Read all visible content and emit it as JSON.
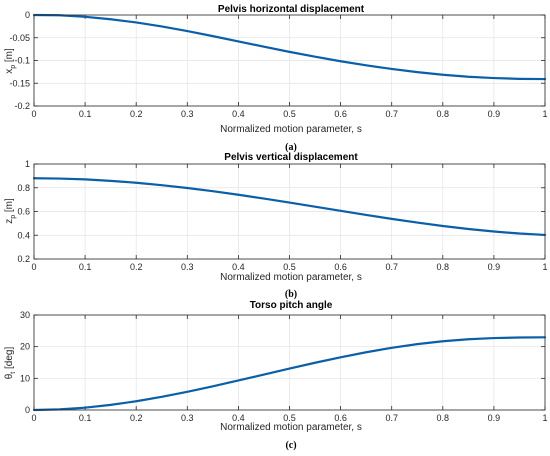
{
  "style": {
    "line_color": "#0b5fa8"
  },
  "panels": [
    {
      "caption": "(a)",
      "chart_data": {
        "type": "line",
        "title": "Pelvis horizontal displacement",
        "xlabel": "Normalized motion parameter, s",
        "ylabel": "x_p [m]",
        "ylabel_main": "x",
        "ylabel_sub": "p",
        "ylabel_unit": " [m]",
        "xlim": [
          0,
          1
        ],
        "ylim": [
          -0.2,
          0
        ],
        "grid": true,
        "xticks": [
          "0",
          "0.1",
          "0.2",
          "0.3",
          "0.4",
          "0.5",
          "0.6",
          "0.7",
          "0.8",
          "0.9",
          "1"
        ],
        "yticks": [
          "-0.2",
          "-0.15",
          "-0.1",
          "-0.05",
          "0"
        ],
        "series": [
          {
            "x": [
              0,
              0.05,
              0.1,
              0.15,
              0.2,
              0.25,
              0.3,
              0.35,
              0.4,
              0.45,
              0.5,
              0.55,
              0.6,
              0.65,
              0.7,
              0.75,
              0.8,
              0.85,
              0.9,
              0.95,
              1.0
            ],
            "values": [
              0,
              -0.0005,
              -0.004,
              -0.0093,
              -0.0164,
              -0.0252,
              -0.0353,
              -0.0464,
              -0.058,
              -0.0697,
              -0.081,
              -0.0917,
              -0.1016,
              -0.1106,
              -0.1186,
              -0.1255,
              -0.1313,
              -0.1357,
              -0.1386,
              -0.1403,
              -0.1408
            ]
          }
        ]
      }
    },
    {
      "caption": "(b)",
      "chart_data": {
        "type": "line",
        "title": "Pelvis vertical displacement",
        "xlabel": "Normalized motion parameter, s",
        "ylabel": "z_p [m]",
        "ylabel_main": "z",
        "ylabel_sub": "p",
        "ylabel_unit": " [m]",
        "xlim": [
          0,
          1
        ],
        "ylim": [
          0.2,
          1
        ],
        "grid": true,
        "xticks": [
          "0",
          "0.1",
          "0.2",
          "0.3",
          "0.4",
          "0.5",
          "0.6",
          "0.7",
          "0.8",
          "0.9",
          "1"
        ],
        "yticks": [
          "0.2",
          "0.4",
          "0.6",
          "0.8",
          "1"
        ],
        "series": [
          {
            "x": [
              0,
              0.05,
              0.1,
              0.15,
              0.2,
              0.25,
              0.3,
              0.35,
              0.4,
              0.45,
              0.5,
              0.55,
              0.6,
              0.65,
              0.7,
              0.75,
              0.8,
              0.85,
              0.9,
              0.95,
              1.0
            ],
            "values": [
              0.88,
              0.8775,
              0.8702,
              0.8582,
              0.842,
              0.8218,
              0.7979,
              0.7709,
              0.741,
              0.7088,
              0.675,
              0.6403,
              0.6055,
              0.5712,
              0.538,
              0.5067,
              0.478,
              0.4527,
              0.4313,
              0.4145,
              0.4027
            ]
          }
        ]
      }
    },
    {
      "caption": "(c)",
      "chart_data": {
        "type": "line",
        "title": "Torso pitch angle",
        "xlabel": "Normalized motion parameter, s",
        "ylabel": "θ_t [deg]",
        "ylabel_main": "θ",
        "ylabel_sub": "t",
        "ylabel_unit": " [deg]",
        "xlim": [
          0,
          1
        ],
        "ylim": [
          0,
          30
        ],
        "grid": true,
        "xticks": [
          "0",
          "0.1",
          "0.2",
          "0.3",
          "0.4",
          "0.5",
          "0.6",
          "0.7",
          "0.8",
          "0.9",
          "1"
        ],
        "yticks": [
          "0",
          "10",
          "20",
          "30"
        ],
        "series": [
          {
            "x": [
              0,
              0.05,
              0.1,
              0.15,
              0.2,
              0.25,
              0.3,
              0.35,
              0.4,
              0.45,
              0.5,
              0.55,
              0.6,
              0.65,
              0.7,
              0.75,
              0.8,
              0.85,
              0.9,
              0.95,
              1.0
            ],
            "values": [
              0,
              0.19,
              0.73,
              1.61,
              2.76,
              4.16,
              5.75,
              7.49,
              9.33,
              11.2,
              13.1,
              14.92,
              16.65,
              18.24,
              19.64,
              20.81,
              21.72,
              22.35,
              22.71,
              22.9,
              22.95
            ]
          }
        ]
      }
    }
  ]
}
